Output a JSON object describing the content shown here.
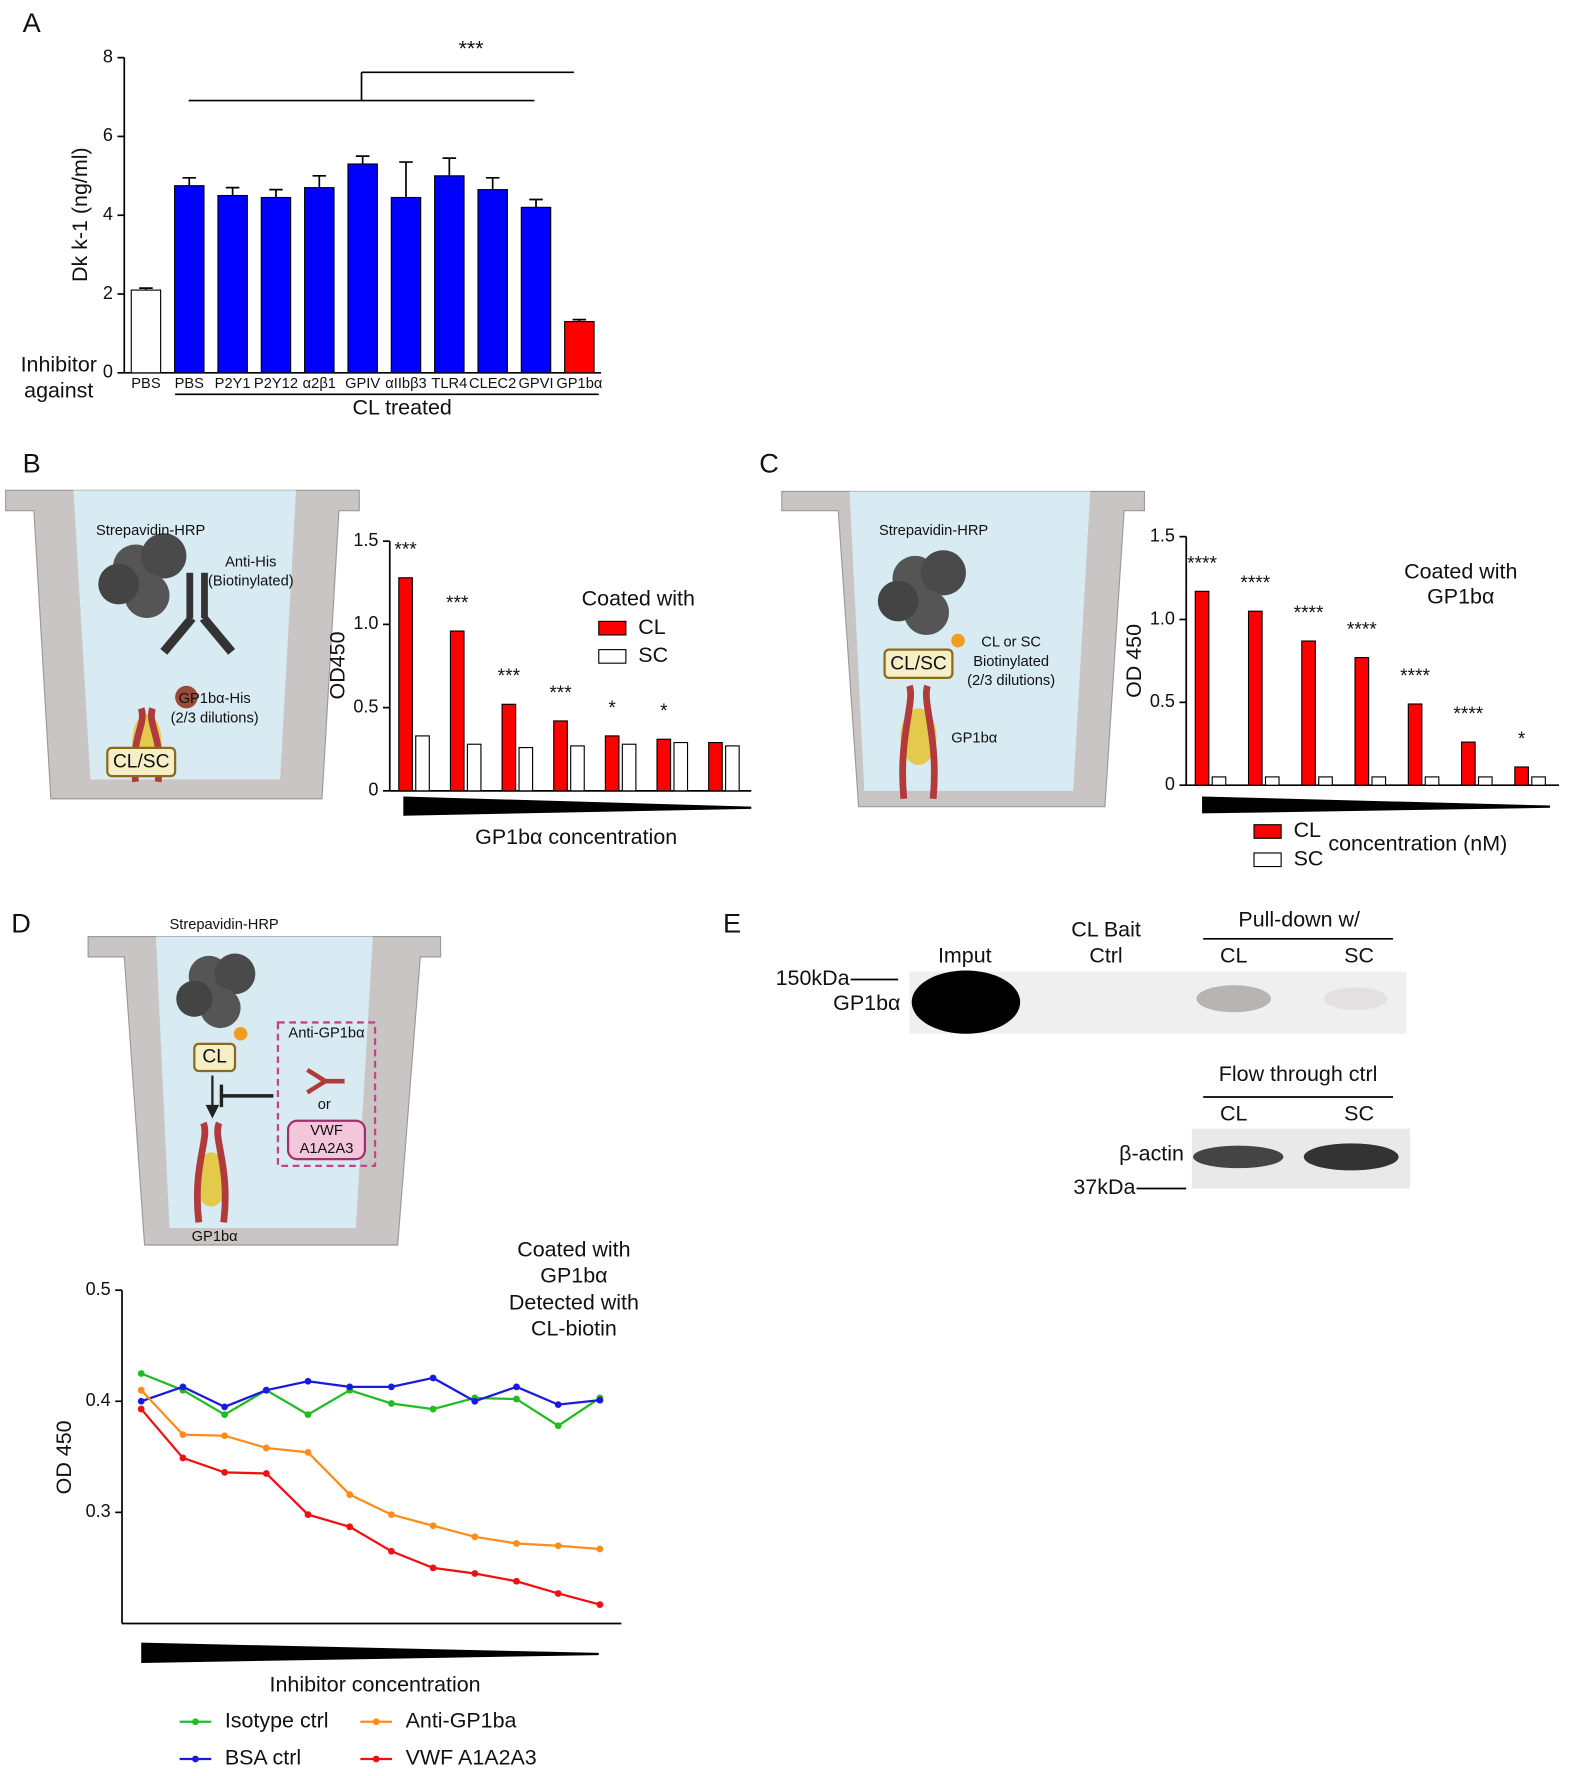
{
  "panels": [
    "A",
    "B",
    "C",
    "D",
    "E"
  ],
  "chart_data": [
    {
      "type": "bar",
      "ylabel": "Dk k-1 (ng/ml)",
      "xlabel": "CL treated",
      "annotations": [
        "Inhibitor",
        "against",
        "***"
      ],
      "categories": [
        "PBS",
        "PBS",
        "P2Y1",
        "P2Y12",
        "α2β1",
        "GPIV",
        "αIIbβ3",
        "TLR4",
        "CLEC2",
        "GPVI",
        "GP1bα"
      ],
      "values": [
        2.1,
        4.75,
        4.5,
        4.45,
        4.7,
        5.3,
        4.45,
        5.0,
        4.65,
        4.2,
        1.3
      ],
      "errors": [
        0.05,
        0.2,
        0.2,
        0.2,
        0.3,
        0.2,
        0.9,
        0.45,
        0.3,
        0.2,
        0.05
      ],
      "colors": [
        "#ffffff",
        "#0000ff",
        "#0000ff",
        "#0000ff",
        "#0000ff",
        "#0000ff",
        "#0000ff",
        "#0000ff",
        "#0000ff",
        "#0000ff",
        "#ff0000"
      ],
      "ylim": [
        0,
        8
      ],
      "yticks": [
        0,
        2,
        4,
        6,
        8
      ]
    },
    {
      "type": "bar",
      "ylabel": "OD450",
      "xlabel": "GP1bα concentration",
      "legend_title": "Coated with",
      "categories": [
        null,
        null,
        null,
        null,
        null,
        null,
        null
      ],
      "series": [
        {
          "name": "CL",
          "color": "#ff0000",
          "values": [
            1.28,
            0.96,
            0.52,
            0.42,
            0.33,
            0.31,
            0.29
          ]
        },
        {
          "name": "SC",
          "color": "#ffffff",
          "values": [
            0.33,
            0.28,
            0.26,
            0.27,
            0.28,
            0.29,
            0.27
          ]
        }
      ],
      "significance": [
        "***",
        "***",
        "***",
        "***",
        "*",
        "*",
        null
      ],
      "ylim": [
        0,
        1.5
      ],
      "yticks": [
        0,
        0.5,
        {
          "value": 1,
          "label": "1.0"
        },
        1.5
      ]
    },
    {
      "type": "bar",
      "ylabel": "OD 450",
      "xlabel": "concentration (nM)",
      "annotations": [
        "Coated with",
        "GP1bα"
      ],
      "categories": [
        null,
        null,
        null,
        null,
        null,
        null,
        null
      ],
      "series": [
        {
          "name": "CL",
          "color": "#ff0000",
          "values": [
            1.17,
            1.05,
            0.87,
            0.77,
            0.49,
            0.26,
            0.11
          ]
        },
        {
          "name": "SC",
          "color": "#ffffff",
          "values": [
            0.05,
            0.05,
            0.05,
            0.05,
            0.05,
            0.05,
            0.05
          ]
        }
      ],
      "significance": [
        "****",
        "****",
        "****",
        "****",
        "****",
        "****",
        "*"
      ],
      "ylim": [
        0,
        1.5
      ],
      "yticks": [
        0,
        0.5,
        {
          "value": 1,
          "label": "1.0"
        },
        1.5
      ]
    },
    {
      "type": "line",
      "ylabel": "OD 450",
      "xlabel": "Inhibitor concentration",
      "annotations": [
        "Coated with",
        "GP1bα",
        "Detected with",
        "CL-biotin"
      ],
      "categories": [
        null,
        null,
        null,
        null,
        null,
        null,
        null,
        null,
        null,
        null,
        null,
        null
      ],
      "series": [
        {
          "name": "Isotype ctrl",
          "color": "#22bb22",
          "values": [
            0.425,
            0.41,
            0.388,
            0.41,
            0.388,
            0.41,
            0.398,
            0.393,
            0.403,
            0.402,
            0.378,
            0.403
          ]
        },
        {
          "name": "BSA ctrl",
          "color": "#1a1adf",
          "values": [
            0.4,
            0.413,
            0.395,
            0.41,
            0.418,
            0.413,
            0.413,
            0.421,
            0.4,
            0.413,
            0.397,
            0.401
          ]
        },
        {
          "name": "Anti-GP1ba",
          "color": "#ff8c1a",
          "values": [
            0.41,
            0.37,
            0.369,
            0.358,
            0.354,
            0.316,
            0.298,
            0.288,
            0.278,
            0.272,
            0.27,
            0.267
          ]
        },
        {
          "name": "VWF A1A2A3",
          "color": "#ee1111",
          "values": [
            0.393,
            0.349,
            0.336,
            0.335,
            0.298,
            0.287,
            0.265,
            0.25,
            0.245,
            0.238,
            0.227,
            0.217
          ]
        }
      ],
      "ylim": [
        0.2,
        0.5
      ],
      "yticks": [
        0.3,
        0.4,
        0.5
      ]
    }
  ],
  "diagram_b": {
    "labels": [
      "Strepavidin-HRP",
      "Anti-His",
      "(Biotinylated)",
      "GP1bα-His",
      "(2/3 dilutions)",
      "CL/SC"
    ]
  },
  "diagram_c": {
    "labels": [
      "Strepavidin-HRP",
      "CL or SC",
      "Biotinylated",
      "(2/3 dilutions)",
      "CL/SC",
      "GP1bα"
    ]
  },
  "diagram_d": {
    "labels": [
      "Strepavidin-HRP",
      "CL",
      "Anti-GP1bα",
      "or",
      "VWF",
      "A1A2A3",
      "GP1bα"
    ]
  },
  "blot": {
    "top": [
      "Imput",
      "CL Bait",
      "Ctrl",
      "Pull-down w/",
      "CL",
      "SC"
    ],
    "markers": [
      "150kDa",
      "GP1bα",
      "β-actin",
      "37kDa"
    ],
    "bottom": [
      "Flow through ctrl",
      "CL",
      "SC"
    ]
  }
}
